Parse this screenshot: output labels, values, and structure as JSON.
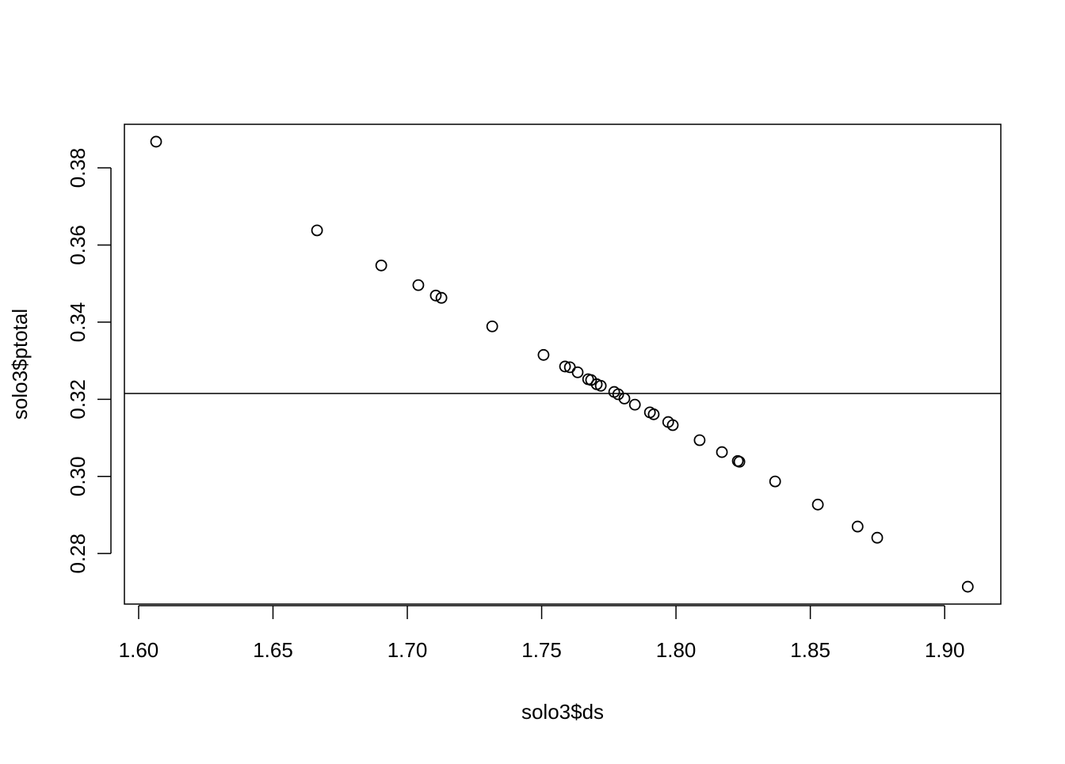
{
  "chart_data": {
    "type": "scatter",
    "xlabel": "solo3$ds",
    "ylabel": "solo3$ptotal",
    "color": "#000000",
    "x": [
      1.6065,
      1.6664,
      1.6903,
      1.7041,
      1.7106,
      1.7127,
      1.7316,
      1.7507,
      1.7587,
      1.7605,
      1.7634,
      1.7673,
      1.7684,
      1.7705,
      1.772,
      1.777,
      1.7785,
      1.7808,
      1.7847,
      1.7903,
      1.7917,
      1.7971,
      1.7988,
      1.8088,
      1.8171,
      1.823,
      1.8236,
      1.8369,
      1.8528,
      1.8676,
      1.8749,
      1.9086
    ],
    "y": [
      0.3868,
      0.3638,
      0.3547,
      0.3496,
      0.3469,
      0.3463,
      0.3389,
      0.3315,
      0.3285,
      0.3283,
      0.327,
      0.3252,
      0.325,
      0.3239,
      0.3235,
      0.3219,
      0.3213,
      0.3202,
      0.3186,
      0.3166,
      0.3161,
      0.3141,
      0.3133,
      0.3094,
      0.3063,
      0.304,
      0.3038,
      0.2987,
      0.2927,
      0.287,
      0.2841,
      0.2714
    ],
    "hline": 0.3215,
    "xlim": [
      1.5947,
      1.9209
    ],
    "ylim": [
      0.2669,
      0.3913
    ],
    "xticks": [
      {
        "value": 1.6,
        "label": "1.60"
      },
      {
        "value": 1.65,
        "label": "1.65"
      },
      {
        "value": 1.7,
        "label": "1.70"
      },
      {
        "value": 1.75,
        "label": "1.75"
      },
      {
        "value": 1.8,
        "label": "1.80"
      },
      {
        "value": 1.85,
        "label": "1.85"
      },
      {
        "value": 1.9,
        "label": "1.90"
      }
    ],
    "yticks": [
      0.28,
      {
        "value": 0.3,
        "label": "0.30"
      },
      0.32,
      0.34,
      0.36,
      0.38
    ]
  }
}
